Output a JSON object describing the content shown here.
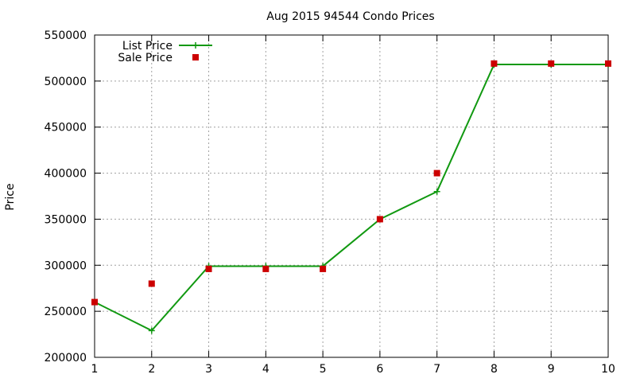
{
  "chart_data": {
    "type": "line",
    "title": "Aug 2015 94544 Condo Prices",
    "xlabel": "",
    "ylabel": "Price",
    "x": [
      1,
      2,
      3,
      4,
      5,
      6,
      7,
      8,
      9,
      10
    ],
    "xlim": [
      1,
      10
    ],
    "ylim": [
      200000,
      550000
    ],
    "xticks": [
      "1",
      "2",
      "3",
      "4",
      "5",
      "6",
      "7",
      "8",
      "9",
      "10"
    ],
    "yticks": [
      "200000",
      "250000",
      "300000",
      "350000",
      "400000",
      "450000",
      "500000",
      "550000"
    ],
    "grid": true,
    "legend_position": "top-left",
    "series": [
      {
        "name": "List Price",
        "style": "line-with-plus-markers",
        "color": "#119911",
        "values": [
          260000,
          229000,
          299000,
          299000,
          299000,
          350000,
          380000,
          518000,
          518000,
          518000
        ]
      },
      {
        "name": "Sale Price",
        "style": "square-markers",
        "color": "#cc0000",
        "values": [
          260000,
          280000,
          296000,
          296000,
          296000,
          350000,
          400000,
          519000,
          519000,
          519000
        ]
      }
    ]
  }
}
